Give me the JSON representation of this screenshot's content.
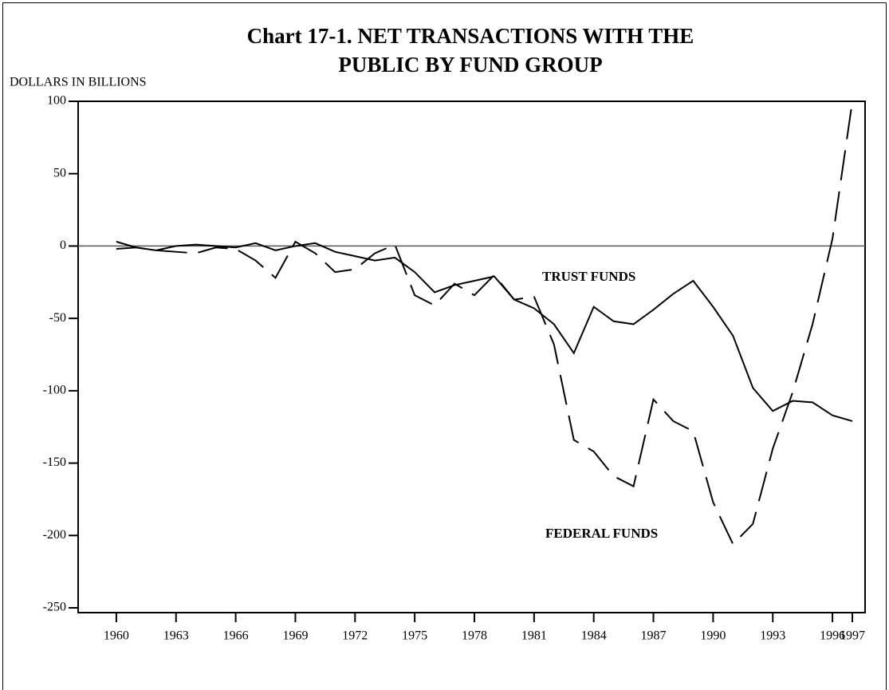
{
  "chart_data": {
    "type": "line",
    "title_lines": [
      "Chart 17-1. NET TRANSACTIONS WITH THE",
      "PUBLIC BY FUND GROUP"
    ],
    "y_label": "DOLLARS IN BILLIONS",
    "x": [
      1960,
      1961,
      1962,
      1963,
      1964,
      1965,
      1966,
      1967,
      1968,
      1969,
      1970,
      1971,
      1972,
      1973,
      1974,
      1975,
      1976,
      1977,
      1978,
      1979,
      1980,
      1981,
      1982,
      1983,
      1984,
      1985,
      1986,
      1987,
      1988,
      1989,
      1990,
      1991,
      1992,
      1993,
      1994,
      1995,
      1996,
      1997
    ],
    "series": [
      {
        "name": "TRUST FUNDS",
        "color": "#000000",
        "dashed": false,
        "values": [
          -2,
          -1,
          -3,
          0,
          1,
          0,
          -1,
          2,
          -3,
          0,
          2,
          -4,
          -7,
          -10,
          -8,
          -18,
          -32,
          -27,
          -24,
          -21,
          -37,
          -43,
          -54,
          -74,
          -42,
          -52,
          -54,
          -44,
          -33,
          -24,
          -42,
          -62,
          -98,
          -114,
          -107,
          -108,
          -117,
          -121
        ]
      },
      {
        "name": "FEDERAL FUNDS",
        "color": "#000000",
        "dashed": true,
        "values": [
          3,
          -1,
          -3,
          -4,
          -5,
          -1,
          -2,
          -10,
          -22,
          3,
          -5,
          -18,
          -16,
          -5,
          1,
          -34,
          -41,
          -26,
          -34,
          -20,
          -37,
          -35,
          -68,
          -134,
          -142,
          -159,
          -166,
          -106,
          -121,
          -128,
          -177,
          -206,
          -192,
          -140,
          -101,
          -54,
          5,
          100
        ]
      }
    ],
    "xlim": [
      1958.08,
      1997.64
    ],
    "xticks": [
      1960,
      1963,
      1966,
      1969,
      1972,
      1975,
      1978,
      1981,
      1984,
      1987,
      1990,
      1993,
      1996,
      1997
    ],
    "ylim": [
      -250,
      100
    ],
    "yticks": [
      100,
      50,
      0,
      -50,
      -100,
      -150,
      -200,
      -250
    ],
    "zero_line": true
  }
}
